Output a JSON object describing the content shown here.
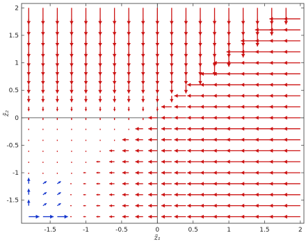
{
  "chart_data": {
    "type": "quiver",
    "xlim": [
      -1.9,
      2.05
    ],
    "ylim": [
      -1.92,
      2.08
    ],
    "grid": false,
    "xlabel": "z̃₁",
    "ylabel": "z̃₂",
    "x_ticks": [
      -1.5,
      -1,
      -0.5,
      0,
      0.5,
      1,
      1.5,
      2
    ],
    "x_tick_labels": [
      "-1.5",
      "-1",
      "-0.5",
      "0",
      "0.5",
      "1",
      "1.5",
      "2"
    ],
    "y_ticks": [
      -1.5,
      -1,
      -0.5,
      0,
      0.5,
      1,
      1.5,
      2
    ],
    "y_tick_labels": [
      "-1.5",
      "-1",
      "-0.5",
      "0",
      "0.5",
      "1",
      "1.5",
      "2"
    ],
    "grid_points": {
      "x": [
        -1.8,
        -1.6,
        -1.4,
        -1.2,
        -1.0,
        -0.8,
        -0.6,
        -0.4,
        -0.2,
        0.0,
        0.2,
        0.4,
        0.6,
        0.8,
        1.0,
        1.2,
        1.4,
        1.6,
        1.8,
        2.0
      ],
      "y": [
        -1.8,
        -1.6,
        -1.4,
        -1.2,
        -1.0,
        -0.8,
        -0.6,
        -0.4,
        -0.2,
        0.0,
        0.2,
        0.4,
        0.6,
        0.8,
        1.0,
        1.2,
        1.4,
        1.6,
        1.8,
        2.0
      ]
    },
    "field": "du = -min(max(u,0), max(v,0)+0.1) style: leftward where x>y, downward where y>x; blue small arrows near lower-left corner",
    "colors": {
      "negative_flow": "#cc1111",
      "positive_flow": "#1133cc"
    }
  }
}
